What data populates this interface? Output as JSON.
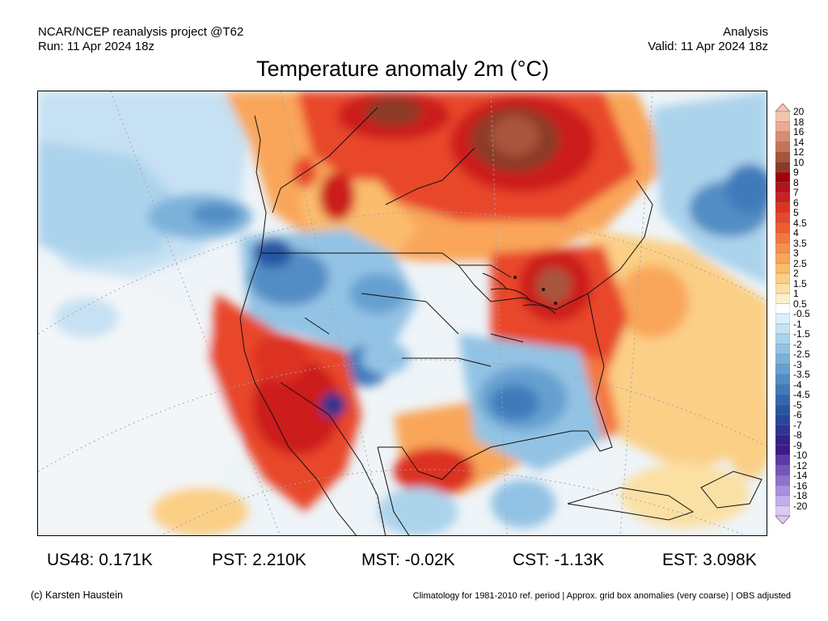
{
  "header": {
    "left_line1": "NCAR/NCEP reanalysis project @T62",
    "left_line2": "Run: 11 Apr 2024 18z",
    "right_line1": "Analysis",
    "right_line2": "Valid: 11 Apr 2024 18z"
  },
  "title": "Temperature anomaly 2m (°C)",
  "colorbar": {
    "labels": [
      "20",
      "18",
      "16",
      "14",
      "12",
      "10",
      "9",
      "8",
      "7",
      "6",
      "5",
      "4.5",
      "4",
      "3.5",
      "3",
      "2.5",
      "2",
      "1.5",
      "1",
      "0.5",
      "-0.5",
      "-1",
      "-1.5",
      "-2",
      "-2.5",
      "-3",
      "-3.5",
      "-4",
      "-4.5",
      "-5",
      "-6",
      "-7",
      "-8",
      "-9",
      "-10",
      "-12",
      "-14",
      "-16",
      "-18",
      "-20"
    ],
    "colors": [
      "#f2c4b0",
      "#e8ab93",
      "#d98c72",
      "#c47558",
      "#a9543c",
      "#8c3a25",
      "#a00010",
      "#b5121a",
      "#cc1f1f",
      "#dd3322",
      "#e8472a",
      "#f05c33",
      "#f4763d",
      "#f78f4a",
      "#f9a65a",
      "#fbbc6d",
      "#fbcf86",
      "#fbe0a4",
      "#fcefcc",
      "#ffffff",
      "#ddeef9",
      "#c6e1f3",
      "#acd3ec",
      "#93c3e4",
      "#7bb2da",
      "#66a0d0",
      "#528dc5",
      "#407abb",
      "#3268b0",
      "#2856a4",
      "#28469a",
      "#2d3590",
      "#332288",
      "#3d1a8a",
      "#5c3aa8",
      "#7656bd",
      "#8f72cd",
      "#a98fdd",
      "#c3adea",
      "#dccaf4"
    ]
  },
  "stats": {
    "us48": "US48: 0.171K",
    "pst": "PST: 2.210K",
    "mst": "MST: -0.02K",
    "cst": "CST: -1.13K",
    "est": "EST: 3.098K"
  },
  "footer": {
    "credit": "(c) Karsten Haustein",
    "note": "Climatology for 1981-2010 ref. period | Approx. grid box anomalies (very coarse) | OBS adjusted"
  }
}
